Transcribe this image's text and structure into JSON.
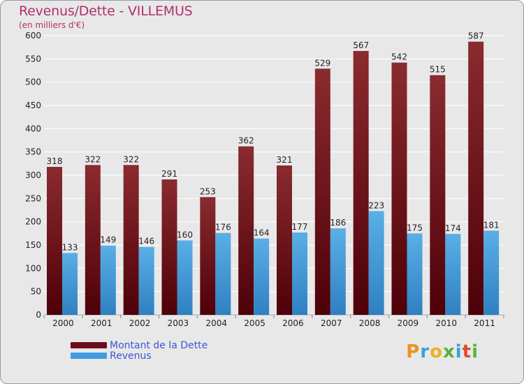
{
  "title": "Revenus/Dette - VILLEMUS",
  "subtitle": "(en milliers d'€)",
  "logo": "Proxiti",
  "colors": {
    "debt_top": "#8a2b2f",
    "debt_bottom": "#4e0008",
    "rev_top": "#5aafe6",
    "rev_bottom": "#2f80c2",
    "grid": "#ffffff",
    "axis_text": "#222222",
    "title": "#b0306a",
    "legend_text": "#3b55d6"
  },
  "legend": [
    {
      "label": "Montant de la Dette",
      "color": "#6a0f18"
    },
    {
      "label": "Revenus",
      "color": "#3e9be0"
    }
  ],
  "chart_data": {
    "type": "bar",
    "title": "Revenus/Dette - VILLEMUS",
    "subtitle": "(en milliers d'€)",
    "categories": [
      "2000",
      "2001",
      "2002",
      "2003",
      "2004",
      "2005",
      "2006",
      "2007",
      "2008",
      "2009",
      "2010",
      "2011"
    ],
    "series": [
      {
        "name": "Montant de la Dette",
        "values": [
          318,
          322,
          322,
          291,
          253,
          362,
          321,
          529,
          567,
          542,
          515,
          587
        ]
      },
      {
        "name": "Revenus",
        "values": [
          133,
          149,
          146,
          160,
          176,
          164,
          177,
          186,
          223,
          175,
          174,
          181
        ]
      }
    ],
    "ylim": [
      0,
      600
    ],
    "yticks": [
      0,
      50,
      100,
      150,
      200,
      250,
      300,
      350,
      400,
      450,
      500,
      550,
      600
    ],
    "grid": true,
    "legend_position": "bottom-left"
  }
}
